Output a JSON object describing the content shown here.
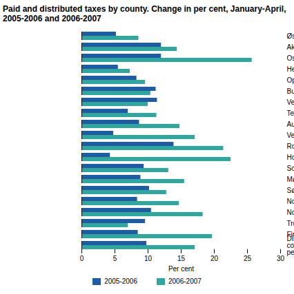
{
  "chart_data": {
    "type": "bar",
    "orientation": "horizontal",
    "title": "Paid and distributed taxes by county. Change in per cent, January-April, 2005-2006 and 2006-2007",
    "categories": [
      "Østfold",
      "Akershus",
      "Oslo",
      "Hedmark",
      "Oppland",
      "Buskerud",
      "Vestfold",
      "Telemark",
      "Aust-Agder",
      "Vest-Agder",
      "Rogaland",
      "Hordaland",
      "Sogn og Fjordane",
      "Møre og Romsdal",
      "Sør-Trøndelag",
      "Nord-Trøndelag",
      "Nordland",
      "Troms Romsa",
      "Finnmark Finnmárku",
      "Distributed taxes by county, total, excluding petroleum taxes"
    ],
    "series": [
      {
        "name": "2005-2006",
        "color": "#1f5ca6",
        "values": [
          5.2,
          12.0,
          12.0,
          5.5,
          8.3,
          11.2,
          11.4,
          7.0,
          8.7,
          4.8,
          13.9,
          4.3,
          9.4,
          8.9,
          10.2,
          8.4,
          10.5,
          9.6,
          8.5,
          9.8
        ]
      },
      {
        "name": "2006-2007",
        "color": "#2fa69e",
        "values": [
          8.6,
          14.4,
          25.7,
          7.3,
          9.6,
          10.4,
          10.0,
          11.3,
          14.8,
          17.1,
          21.4,
          22.5,
          13.1,
          15.5,
          12.8,
          14.7,
          18.3,
          7.0,
          19.7,
          17.1
        ]
      }
    ],
    "x_label": "Per cent",
    "xlim": [
      0,
      30
    ],
    "xticks": [
      0,
      5,
      10,
      15,
      20,
      25,
      30
    ],
    "grid": false,
    "legend": "bottom"
  }
}
